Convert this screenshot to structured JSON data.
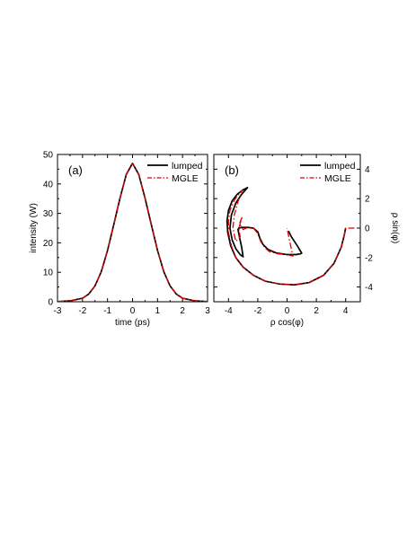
{
  "chart_data": [
    {
      "type": "line",
      "panel_label": "(a)",
      "xlabel": "time (ps)",
      "ylabel": "intensity (W)",
      "xlim": [
        -3,
        3
      ],
      "ylim": [
        0,
        50
      ],
      "xticks": [
        -3,
        -2,
        -1,
        0,
        1,
        2,
        3
      ],
      "yticks": [
        0,
        10,
        20,
        30,
        40,
        50
      ],
      "legend_position": "top-right",
      "colors": {
        "lumped": "#000000",
        "MGLE": "#dd0000"
      },
      "series": [
        {
          "name": "lumped",
          "style": "solid",
          "x": [
            -3,
            -2.5,
            -2,
            -1.75,
            -1.5,
            -1.25,
            -1,
            -0.75,
            -0.5,
            -0.25,
            0,
            0.25,
            0.5,
            0.75,
            1,
            1.25,
            1.5,
            1.75,
            2,
            2.5,
            3
          ],
          "y": [
            0.05,
            0.3,
            1.2,
            2.6,
            5.4,
            10.2,
            17.4,
            26.2,
            35.2,
            43.2,
            47,
            43.2,
            35.2,
            26.2,
            17.4,
            10.2,
            5.4,
            2.6,
            1.2,
            0.3,
            0.05
          ]
        },
        {
          "name": "MGLE",
          "style": "dash-dot",
          "x": [
            -3,
            -2.5,
            -2,
            -1.75,
            -1.5,
            -1.25,
            -1,
            -0.75,
            -0.5,
            -0.25,
            0,
            0.25,
            0.5,
            0.75,
            1,
            1.25,
            1.5,
            1.75,
            2,
            2.5,
            3
          ],
          "y": [
            0.05,
            0.3,
            1.2,
            2.6,
            5.4,
            10.2,
            17.4,
            26.2,
            35.2,
            43.2,
            47,
            43.2,
            35.2,
            26.2,
            17.4,
            10.2,
            5.4,
            2.6,
            1.2,
            0.3,
            0.05
          ]
        }
      ]
    },
    {
      "type": "line",
      "panel_label": "(b)",
      "xlabel": "ρ cos(φ)",
      "ylabel": "ρ sin(φ)",
      "xlim": [
        -5,
        5
      ],
      "ylim": [
        -5,
        5
      ],
      "xticks": [
        -4,
        -2,
        0,
        2,
        4
      ],
      "yticks": [
        -4,
        -2,
        0,
        2,
        4
      ],
      "y_axis_side": "right",
      "legend_position": "top-right",
      "colors": {
        "lumped": "#000000",
        "MGLE": "#dd0000"
      },
      "series": [
        {
          "name": "lumped",
          "style": "solid",
          "x": [
            4,
            3.9,
            3.7,
            3.2,
            2.5,
            1.5,
            0.5,
            -0.5,
            -1.5,
            -2.3,
            -3.0,
            -3.5,
            -3.85,
            -4.05,
            -4.1,
            -4.0,
            -3.75,
            -3.4,
            -3.0,
            -2.7,
            -3.1,
            -3.5,
            -3.8,
            -3.9,
            -3.75,
            -3.5,
            -3.2,
            -3.0,
            -3.1,
            -3.25,
            -3.35,
            -3.3,
            -3.1,
            -2.7,
            -2.3,
            -2.0,
            -1.85,
            -1.65,
            -1.3,
            -0.7,
            0.0,
            0.6,
            0.9,
            1.0,
            0.7,
            0.3,
            0.1
          ],
          "y": [
            0,
            -0.5,
            -1.3,
            -2.4,
            -3.2,
            -3.7,
            -3.85,
            -3.8,
            -3.6,
            -3.2,
            -2.65,
            -2.0,
            -1.2,
            -0.3,
            0.5,
            1.2,
            1.85,
            2.3,
            2.6,
            2.75,
            2.3,
            1.7,
            0.9,
            0.0,
            -0.8,
            -1.4,
            -1.8,
            -1.95,
            -1.3,
            -0.6,
            -0.1,
            0.0,
            0.05,
            0.05,
            0.0,
            -0.25,
            -0.7,
            -1.1,
            -1.45,
            -1.7,
            -1.8,
            -1.8,
            -1.75,
            -1.7,
            -1.2,
            -0.6,
            -0.2
          ]
        },
        {
          "name": "MGLE",
          "style": "dash-dot",
          "x": [
            4.6,
            4.1,
            4,
            3.9,
            3.7,
            3.2,
            2.5,
            1.5,
            0.5,
            -0.5,
            -1.5,
            -2.3,
            -3.0,
            -3.5,
            -3.8,
            -4.0,
            -4.0,
            -3.9,
            -3.6,
            -3.3,
            -3.05,
            -3.35,
            -3.6,
            -3.7,
            -3.5,
            -3.2,
            -3.3,
            -3.05,
            -3.25,
            -3.0,
            -2.8,
            -2.6,
            -2.3,
            -2.05,
            -1.8,
            -1.55,
            -1.2,
            -0.6,
            0.0,
            0.4,
            0.2,
            0.0
          ],
          "y": [
            0,
            0,
            0,
            -0.5,
            -1.3,
            -2.4,
            -3.2,
            -3.7,
            -3.85,
            -3.8,
            -3.6,
            -3.2,
            -2.65,
            -2.0,
            -1.2,
            -0.3,
            0.5,
            1.2,
            1.9,
            2.3,
            2.6,
            1.8,
            0.9,
            0.0,
            -0.9,
            -0.6,
            0.0,
            0.8,
            0.3,
            -0.1,
            0.0,
            0.0,
            0.0,
            -0.3,
            -0.9,
            -1.3,
            -1.6,
            -1.75,
            -1.8,
            -1.9,
            -1.0,
            0.0
          ]
        }
      ]
    }
  ]
}
